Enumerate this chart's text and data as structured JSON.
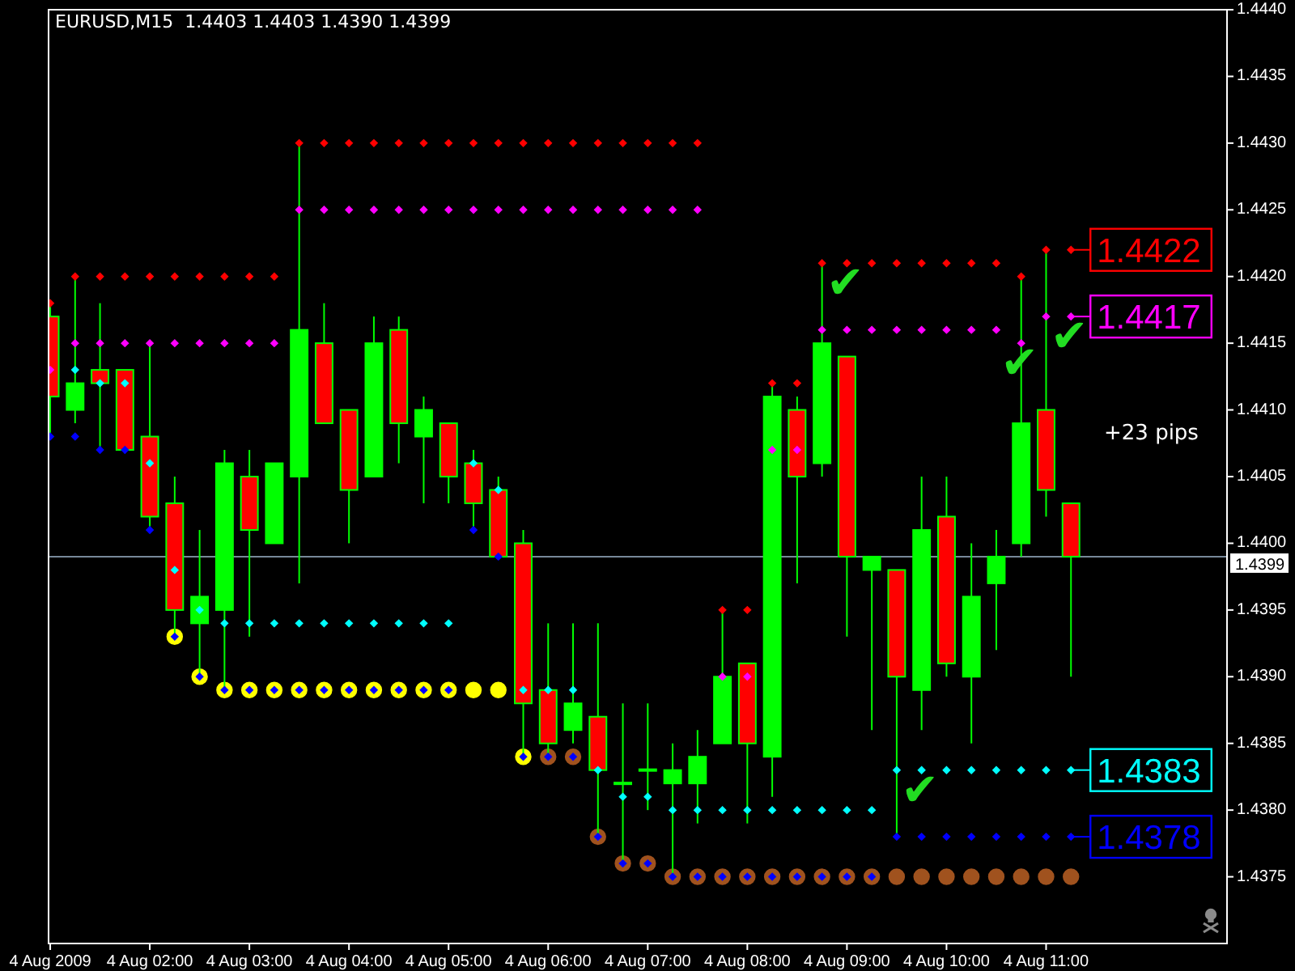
{
  "chart_data": {
    "type": "candlestick",
    "title": "EURUSD,M15  1.4403 1.4403 1.4390 1.4399",
    "x": [
      "2009-08-04T01:00",
      "2009-08-04T01:15",
      "2009-08-04T01:30",
      "2009-08-04T01:45",
      "2009-08-04T02:00",
      "2009-08-04T02:15",
      "2009-08-04T02:30",
      "2009-08-04T02:45",
      "2009-08-04T03:00",
      "2009-08-04T03:15",
      "2009-08-04T03:30",
      "2009-08-04T03:45",
      "2009-08-04T04:00",
      "2009-08-04T04:15",
      "2009-08-04T04:30",
      "2009-08-04T04:45",
      "2009-08-04T05:00",
      "2009-08-04T05:15",
      "2009-08-04T05:30",
      "2009-08-04T05:45",
      "2009-08-04T06:00",
      "2009-08-04T06:15",
      "2009-08-04T06:30",
      "2009-08-04T06:45",
      "2009-08-04T07:00",
      "2009-08-04T07:15",
      "2009-08-04T07:30",
      "2009-08-04T07:45",
      "2009-08-04T08:00",
      "2009-08-04T08:15",
      "2009-08-04T08:30",
      "2009-08-04T08:45",
      "2009-08-04T09:00",
      "2009-08-04T09:15",
      "2009-08-04T09:30",
      "2009-08-04T09:45",
      "2009-08-04T10:00",
      "2009-08-04T10:15",
      "2009-08-04T10:30",
      "2009-08-04T10:45",
      "2009-08-04T11:00",
      "2009-08-04T11:15"
    ],
    "ohlc": [
      [
        1.4417,
        1.4418,
        1.4408,
        1.4411
      ],
      [
        1.441,
        1.442,
        1.4409,
        1.4412
      ],
      [
        1.4413,
        1.4418,
        1.4407,
        1.4412
      ],
      [
        1.4413,
        1.4413,
        1.4407,
        1.4407
      ],
      [
        1.4408,
        1.4415,
        1.4401,
        1.4402
      ],
      [
        1.4403,
        1.4405,
        1.4393,
        1.4395
      ],
      [
        1.4394,
        1.4401,
        1.439,
        1.4396
      ],
      [
        1.4395,
        1.4407,
        1.4389,
        1.4406
      ],
      [
        1.4405,
        1.4407,
        1.4393,
        1.4401
      ],
      [
        1.44,
        1.4406,
        1.44,
        1.4406
      ],
      [
        1.4405,
        1.443,
        1.4397,
        1.4416
      ],
      [
        1.4415,
        1.4418,
        1.4409,
        1.4409
      ],
      [
        1.441,
        1.441,
        1.44,
        1.4404
      ],
      [
        1.4405,
        1.4417,
        1.4405,
        1.4415
      ],
      [
        1.4416,
        1.4417,
        1.4406,
        1.4409
      ],
      [
        1.4408,
        1.4411,
        1.4403,
        1.441
      ],
      [
        1.4409,
        1.4409,
        1.4403,
        1.4405
      ],
      [
        1.4406,
        1.4407,
        1.4401,
        1.4403
      ],
      [
        1.4404,
        1.4405,
        1.4399,
        1.4399
      ],
      [
        1.44,
        1.4401,
        1.4384,
        1.4388
      ],
      [
        1.4389,
        1.4394,
        1.4384,
        1.4385
      ],
      [
        1.4386,
        1.4394,
        1.4385,
        1.4388
      ],
      [
        1.4387,
        1.4394,
        1.4378,
        1.4383
      ],
      [
        1.4382,
        1.4388,
        1.4376,
        1.4382
      ],
      [
        1.4383,
        1.4388,
        1.438,
        1.4383
      ],
      [
        1.4382,
        1.4385,
        1.4375,
        1.4383
      ],
      [
        1.4382,
        1.4386,
        1.4379,
        1.4384
      ],
      [
        1.4385,
        1.4395,
        1.4385,
        1.439
      ],
      [
        1.4391,
        1.4391,
        1.4379,
        1.4385
      ],
      [
        1.4384,
        1.4412,
        1.4381,
        1.4411
      ],
      [
        1.441,
        1.4411,
        1.4397,
        1.4405
      ],
      [
        1.4406,
        1.4421,
        1.4405,
        1.4415
      ],
      [
        1.4414,
        1.4414,
        1.4393,
        1.4399
      ],
      [
        1.4398,
        1.4399,
        1.4386,
        1.4399
      ],
      [
        1.4398,
        1.4398,
        1.4378,
        1.439
      ],
      [
        1.4389,
        1.4405,
        1.4386,
        1.4401
      ],
      [
        1.4402,
        1.4405,
        1.439,
        1.4391
      ],
      [
        1.439,
        1.44,
        1.4385,
        1.4396
      ],
      [
        1.4397,
        1.4401,
        1.4392,
        1.4399
      ],
      [
        1.44,
        1.442,
        1.4399,
        1.4409
      ],
      [
        1.441,
        1.4422,
        1.4402,
        1.4404
      ],
      [
        1.4403,
        1.4403,
        1.439,
        1.4399
      ]
    ],
    "color": "#00ff00",
    "colors": [
      "#ff0000",
      "#00ff00",
      "#ff0000",
      "#ff0000",
      "#ff0000",
      "#ff0000",
      "#00ff00",
      "#00ff00",
      "#ff0000",
      "#00ff00",
      "#00ff00",
      "#ff0000",
      "#ff0000",
      "#00ff00",
      "#ff0000",
      "#00ff00",
      "#ff0000",
      "#ff0000",
      "#ff0000",
      "#ff0000",
      "#ff0000",
      "#00ff00",
      "#ff0000",
      "#00ff00",
      "#00ff00",
      "#00ff00",
      "#00ff00",
      "#00ff00",
      "#ff0000",
      "#00ff00",
      "#ff0000",
      "#00ff00",
      "#ff0000",
      "#00ff00",
      "#ff0000",
      "#00ff00",
      "#ff0000",
      "#00ff00",
      "#00ff00",
      "#00ff00",
      "#ff0000",
      "#ff0000"
    ],
    "series": [
      {
        "type": "scatter",
        "marker": "circle",
        "color": "#ffff00",
        "values": [
          null,
          null,
          null,
          null,
          null,
          1.4393,
          1.439,
          1.4389,
          1.4389,
          1.4389,
          1.4389,
          1.4389,
          1.4389,
          1.4389,
          1.4389,
          1.4389,
          1.4389,
          1.4389,
          1.4389,
          1.4384,
          null,
          null,
          null,
          null,
          null,
          null,
          null,
          null,
          null,
          null,
          null,
          null,
          null,
          null,
          null,
          null,
          null,
          null,
          null,
          null,
          null,
          null
        ]
      },
      {
        "type": "scatter",
        "marker": "circle",
        "color": "#a0521e",
        "values": [
          null,
          null,
          null,
          null,
          null,
          null,
          null,
          null,
          null,
          null,
          null,
          null,
          null,
          null,
          null,
          null,
          null,
          null,
          null,
          null,
          1.4384,
          1.4384,
          1.4378,
          1.4376,
          1.4376,
          1.4375,
          1.4375,
          1.4375,
          1.4375,
          1.4375,
          1.4375,
          1.4375,
          1.4375,
          1.4375,
          1.4375,
          1.4375,
          1.4375,
          1.4375,
          1.4375,
          1.4375,
          1.4375,
          1.4375
        ]
      },
      {
        "type": "scatter",
        "marker": "diamond",
        "color": "#ff0000",
        "values": [
          1.4418,
          1.442,
          1.442,
          1.442,
          1.442,
          1.442,
          1.442,
          1.442,
          1.442,
          1.442,
          1.443,
          1.443,
          1.443,
          1.443,
          1.443,
          1.443,
          1.443,
          1.443,
          1.443,
          1.443,
          1.443,
          1.443,
          1.443,
          1.443,
          1.443,
          1.443,
          1.443,
          1.4395,
          1.4395,
          1.4412,
          1.4412,
          1.4421,
          1.4421,
          1.4421,
          1.4421,
          1.4421,
          1.4421,
          1.4421,
          1.4421,
          1.442,
          1.4422,
          1.4422
        ],
        "value_labels": [
          null,
          null,
          null,
          null,
          null,
          null,
          null,
          null,
          null,
          null,
          null,
          null,
          null,
          null,
          null,
          null,
          null,
          null,
          null,
          null,
          null,
          null,
          null,
          null,
          null,
          null,
          null,
          null,
          null,
          null,
          null,
          null,
          null,
          null,
          null,
          null,
          null,
          null,
          null,
          null,
          null,
          "1.4422"
        ]
      },
      {
        "type": "scatter",
        "marker": "diamond",
        "color": "#ff00ff",
        "values": [
          1.4413,
          1.4415,
          1.4415,
          1.4415,
          1.4415,
          1.4415,
          1.4415,
          1.4415,
          1.4415,
          1.4415,
          1.4425,
          1.4425,
          1.4425,
          1.4425,
          1.4425,
          1.4425,
          1.4425,
          1.4425,
          1.4425,
          1.4425,
          1.4425,
          1.4425,
          1.4425,
          1.4425,
          1.4425,
          1.4425,
          1.4425,
          1.439,
          1.439,
          1.4407,
          1.4407,
          1.4416,
          1.4416,
          1.4416,
          1.4416,
          1.4416,
          1.4416,
          1.4416,
          1.4416,
          1.4415,
          1.4417,
          1.4417
        ],
        "value_labels": [
          null,
          null,
          null,
          null,
          null,
          null,
          null,
          null,
          null,
          null,
          null,
          null,
          null,
          null,
          null,
          null,
          null,
          null,
          null,
          null,
          null,
          null,
          null,
          null,
          null,
          null,
          null,
          null,
          null,
          null,
          null,
          null,
          null,
          null,
          null,
          null,
          null,
          null,
          null,
          null,
          null,
          "1.4417"
        ]
      },
      {
        "type": "scatter",
        "marker": "diamond",
        "color": "#00ffff",
        "values": [
          null,
          1.4413,
          1.4412,
          1.4412,
          1.4406,
          1.4398,
          1.4395,
          1.4394,
          1.4394,
          1.4394,
          1.4394,
          1.4394,
          1.4394,
          1.4394,
          1.4394,
          1.4394,
          1.4394,
          1.4406,
          1.4404,
          1.4389,
          1.4389,
          1.4389,
          1.4383,
          1.4381,
          1.4381,
          1.438,
          1.438,
          1.438,
          1.438,
          1.438,
          1.438,
          1.438,
          1.438,
          1.438,
          1.4383,
          1.4383,
          1.4383,
          1.4383,
          1.4383,
          1.4383,
          1.4383,
          1.4383
        ],
        "value_labels": [
          null,
          null,
          null,
          null,
          null,
          null,
          null,
          null,
          null,
          null,
          null,
          null,
          null,
          null,
          null,
          null,
          null,
          null,
          null,
          null,
          null,
          null,
          null,
          null,
          null,
          null,
          null,
          null,
          null,
          null,
          null,
          null,
          null,
          null,
          null,
          null,
          null,
          null,
          null,
          null,
          null,
          "1.4383"
        ]
      },
      {
        "type": "scatter",
        "marker": "diamond",
        "color": "#0000ff",
        "values": [
          1.4408,
          1.4408,
          1.4407,
          1.4407,
          1.4401,
          1.4393,
          1.439,
          1.4389,
          1.4389,
          1.4389,
          1.4389,
          1.4389,
          1.4389,
          1.4389,
          1.4389,
          1.4389,
          1.4389,
          1.4401,
          1.4399,
          1.4384,
          1.4384,
          1.4384,
          1.4378,
          1.4376,
          1.4376,
          1.4375,
          1.4375,
          1.4375,
          1.4375,
          1.4375,
          1.4375,
          1.4375,
          1.4375,
          1.4375,
          1.4378,
          1.4378,
          1.4378,
          1.4378,
          1.4378,
          1.4378,
          1.4378,
          1.4378
        ],
        "value_labels": [
          null,
          null,
          null,
          null,
          null,
          null,
          null,
          null,
          null,
          null,
          null,
          null,
          null,
          null,
          null,
          null,
          null,
          null,
          null,
          null,
          null,
          null,
          null,
          null,
          null,
          null,
          null,
          null,
          null,
          null,
          null,
          null,
          null,
          null,
          null,
          null,
          null,
          null,
          null,
          null,
          null,
          "1.4378"
        ]
      }
    ],
    "xlim": [
      "2009-08-04T00:59",
      "2009-08-04T12:49"
    ],
    "xticks": [
      {
        "value": "2009-08-04T01:00",
        "label": "4 Aug 2009"
      },
      {
        "value": "2009-08-04T02:00",
        "label": "4 Aug 02:00"
      },
      {
        "value": "2009-08-04T03:00",
        "label": "4 Aug 03:00"
      },
      {
        "value": "2009-08-04T04:00",
        "label": "4 Aug 04:00"
      },
      {
        "value": "2009-08-04T05:00",
        "label": "4 Aug 05:00"
      },
      {
        "value": "2009-08-04T06:00",
        "label": "4 Aug 06:00"
      },
      {
        "value": "2009-08-04T07:00",
        "label": "4 Aug 07:00"
      },
      {
        "value": "2009-08-04T08:00",
        "label": "4 Aug 08:00"
      },
      {
        "value": "2009-08-04T09:00",
        "label": "4 Aug 09:00"
      },
      {
        "value": "2009-08-04T10:00",
        "label": "4 Aug 10:00"
      },
      {
        "value": "2009-08-04T11:00",
        "label": "4 Aug 11:00"
      }
    ],
    "ylim": [
      1.437,
      1.444
    ],
    "yticks": [
      1.4375,
      {
        "value": 1.438,
        "label": "1.4380"
      },
      1.4385,
      {
        "value": 1.439,
        "label": "1.4390"
      },
      1.4395,
      {
        "value": 1.44,
        "label": "1.4400"
      },
      1.4405,
      {
        "value": 1.441,
        "label": "1.4410"
      },
      1.4415,
      {
        "value": 1.442,
        "label": "1.4420"
      },
      1.4425,
      {
        "value": 1.443,
        "label": "1.4430"
      },
      1.4435,
      {
        "value": 1.444,
        "label": "1.4440"
      }
    ],
    "ref_lines": [
      {
        "axis": "y",
        "value": 1.4399,
        "label": "1.4399",
        "color": "#778899"
      }
    ],
    "annotations": [
      "+23 pips",
      {
        "text": "✔",
        "x": "2009-08-04T09:00",
        "y": 1.4421
      },
      {
        "text": "✔",
        "x": "2009-08-04T10:45",
        "y": 1.4415
      },
      {
        "text": "✔",
        "x": "2009-08-04T11:15",
        "y": 1.4417
      },
      {
        "text": "✔",
        "x": "2009-08-04T09:45",
        "y": 1.4383
      }
    ]
  }
}
